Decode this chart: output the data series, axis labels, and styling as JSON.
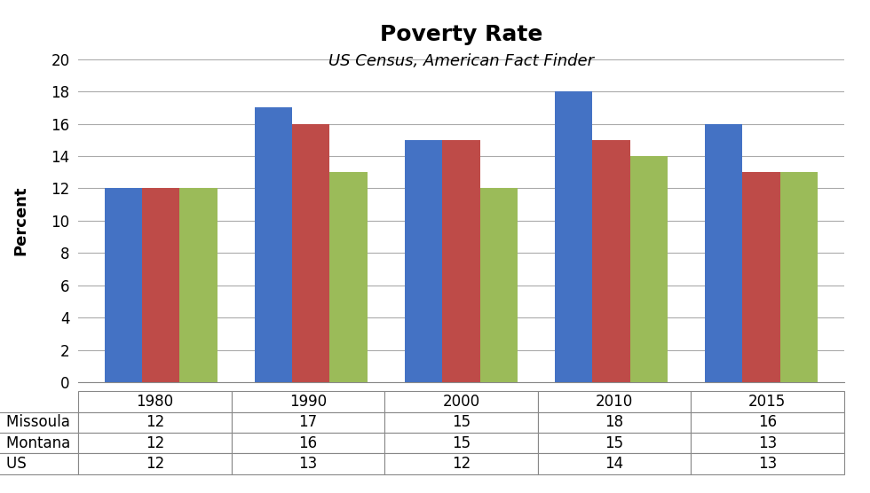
{
  "title": "Poverty Rate",
  "subtitle": "US Census, American Fact Finder",
  "ylabel": "Percent",
  "years": [
    "1980",
    "1990",
    "2000",
    "2010",
    "2015"
  ],
  "series": {
    "Missoula": [
      12,
      17,
      15,
      18,
      16
    ],
    "Montana": [
      12,
      16,
      15,
      15,
      13
    ],
    "US": [
      12,
      13,
      12,
      14,
      13
    ]
  },
  "colors": {
    "Missoula": "#4472C4",
    "Montana": "#BE4B48",
    "US": "#9BBB59"
  },
  "ylim": [
    0,
    20
  ],
  "yticks": [
    0,
    2,
    4,
    6,
    8,
    10,
    12,
    14,
    16,
    18,
    20
  ],
  "background_color": "#FFFFFF",
  "bar_width": 0.25,
  "title_fontsize": 18,
  "subtitle_fontsize": 13,
  "axis_label_fontsize": 13,
  "tick_fontsize": 12,
  "table_fontsize": 12
}
